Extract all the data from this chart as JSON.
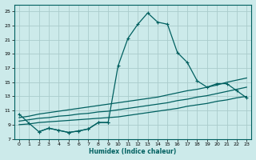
{
  "xlabel": "Humidex (Indice chaleur)",
  "bg_color": "#cceaea",
  "grid_color": "#aacccc",
  "line_color": "#006060",
  "xlim": [
    -0.5,
    23.5
  ],
  "ylim": [
    7,
    26
  ],
  "xticks": [
    0,
    1,
    2,
    3,
    4,
    5,
    6,
    7,
    8,
    9,
    10,
    11,
    12,
    13,
    14,
    15,
    16,
    17,
    18,
    19,
    20,
    21,
    22,
    23
  ],
  "yticks": [
    7,
    9,
    11,
    13,
    15,
    17,
    19,
    21,
    23,
    25
  ],
  "line1_x": [
    0,
    1,
    2,
    3,
    4,
    5,
    6,
    7,
    8,
    9,
    10,
    11,
    12,
    13,
    14,
    15,
    16,
    17,
    18,
    19,
    20,
    21,
    22,
    23
  ],
  "line1_y": [
    10.5,
    9.2,
    8.0,
    8.5,
    8.2,
    7.9,
    8.1,
    8.4,
    9.3,
    9.3,
    17.3,
    21.2,
    23.2,
    24.8,
    23.5,
    23.2,
    19.2,
    17.8,
    15.2,
    14.3,
    14.8,
    14.8,
    13.8,
    12.8
  ],
  "line2_x": [
    0,
    1,
    2,
    3,
    4,
    5,
    6,
    7,
    8,
    9,
    10,
    11,
    12,
    13,
    14,
    15,
    16,
    17,
    18,
    19,
    20,
    21,
    22,
    23
  ],
  "line2_y": [
    10.0,
    10.2,
    10.5,
    10.7,
    10.9,
    11.1,
    11.3,
    11.5,
    11.7,
    11.9,
    12.1,
    12.3,
    12.5,
    12.7,
    12.9,
    13.2,
    13.5,
    13.8,
    14.0,
    14.3,
    14.6,
    15.0,
    15.3,
    15.6
  ],
  "line3_x": [
    0,
    1,
    2,
    3,
    4,
    5,
    6,
    7,
    8,
    9,
    10,
    11,
    12,
    13,
    14,
    15,
    16,
    17,
    18,
    19,
    20,
    21,
    22,
    23
  ],
  "line3_y": [
    9.5,
    9.7,
    9.9,
    10.0,
    10.2,
    10.3,
    10.5,
    10.6,
    10.8,
    10.9,
    11.1,
    11.3,
    11.5,
    11.7,
    11.9,
    12.1,
    12.4,
    12.6,
    12.9,
    13.1,
    13.4,
    13.7,
    14.0,
    14.3
  ],
  "line4_x": [
    0,
    1,
    2,
    3,
    4,
    5,
    6,
    7,
    8,
    9,
    10,
    11,
    12,
    13,
    14,
    15,
    16,
    17,
    18,
    19,
    20,
    21,
    22,
    23
  ],
  "line4_y": [
    9.0,
    9.1,
    9.3,
    9.4,
    9.5,
    9.6,
    9.7,
    9.8,
    9.9,
    10.0,
    10.1,
    10.3,
    10.5,
    10.7,
    10.9,
    11.1,
    11.3,
    11.6,
    11.8,
    12.0,
    12.3,
    12.5,
    12.8,
    13.0
  ],
  "line_nomarker_x": [
    2,
    3,
    4,
    5,
    6,
    7,
    8,
    9
  ],
  "line_nomarker_y": [
    8.0,
    8.5,
    8.2,
    7.9,
    8.1,
    8.4,
    9.3,
    9.3
  ]
}
